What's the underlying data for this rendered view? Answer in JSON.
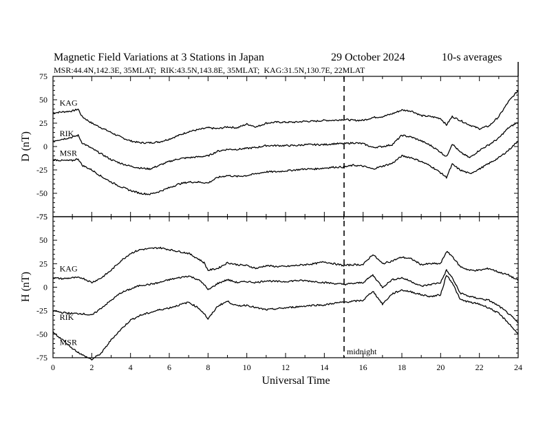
{
  "title": "Magnetic Field Variations at 3 Stations in Japan",
  "date": "29 October 2024",
  "averaging": "10-s averages",
  "stations_line": "MSR:44.4N,142.3E, 35MLAT;  RIK:43.5N,143.8E, 35MLAT;  KAG:31.5N,130.7E, 22MLAT",
  "chart_data": [
    {
      "type": "line",
      "panel": "top",
      "ylabel": "D (nT)",
      "xlim": [
        0,
        24
      ],
      "ylim": [
        -75,
        75
      ],
      "yticks": [
        75,
        50,
        25,
        0,
        -25,
        -50,
        -75
      ],
      "xticks": [
        0,
        2,
        4,
        6,
        8,
        10,
        12,
        14,
        16,
        18,
        20,
        22,
        24
      ],
      "grid": false,
      "series": [
        {
          "name": "KAG",
          "x": [
            0,
            0.5,
            1,
            1.3,
            1.5,
            2,
            2.5,
            3,
            3.5,
            4,
            4.5,
            5,
            5.5,
            6,
            6.5,
            7,
            7.5,
            8,
            8.5,
            9,
            9.5,
            10,
            10.5,
            11,
            11.5,
            12,
            12.5,
            13,
            13.5,
            14,
            14.5,
            15,
            15.5,
            16,
            16.5,
            17,
            17.5,
            18,
            18.5,
            19,
            19.5,
            20,
            20.3,
            20.6,
            21,
            21.5,
            22,
            22.5,
            23,
            23.5,
            24
          ],
          "y": [
            36,
            37,
            38,
            40,
            32,
            25,
            20,
            15,
            10,
            6,
            4,
            4,
            5,
            8,
            12,
            16,
            18,
            20,
            19,
            21,
            20,
            24,
            21,
            25,
            26,
            26,
            26,
            27,
            27,
            28,
            28,
            29,
            28,
            28,
            31,
            32,
            35,
            39,
            38,
            33,
            32,
            30,
            23,
            32,
            28,
            23,
            19,
            22,
            32,
            48,
            60
          ]
        },
        {
          "name": "RIK",
          "x": [
            0,
            0.5,
            1,
            1.3,
            1.5,
            2,
            2.5,
            3,
            3.5,
            4,
            4.5,
            5,
            5.5,
            6,
            6.5,
            7,
            7.5,
            8,
            8.5,
            9,
            9.5,
            10,
            10.5,
            11,
            11.5,
            12,
            12.5,
            13,
            13.5,
            14,
            14.5,
            15,
            15.5,
            16,
            16.5,
            17,
            17.5,
            18,
            18.5,
            19,
            19.5,
            20,
            20.3,
            20.6,
            21,
            21.5,
            22,
            22.5,
            23,
            23.5,
            24
          ],
          "y": [
            6,
            8,
            10,
            12,
            4,
            -2,
            -8,
            -14,
            -18,
            -21,
            -23,
            -24,
            -20,
            -16,
            -13,
            -12,
            -11,
            -10,
            -5,
            -3,
            -3,
            -2,
            -1,
            1,
            1,
            1,
            1,
            2,
            2,
            2,
            3,
            3,
            4,
            3,
            -1,
            0,
            2,
            12,
            10,
            6,
            1,
            -6,
            -11,
            3,
            -6,
            -12,
            -4,
            2,
            9,
            20,
            26
          ]
        },
        {
          "name": "MSR",
          "x": [
            0,
            0.5,
            1,
            1.3,
            1.5,
            2,
            2.5,
            3,
            3.5,
            4,
            4.5,
            5,
            5.5,
            6,
            6.5,
            7,
            7.5,
            8,
            8.5,
            9,
            9.5,
            10,
            10.5,
            11,
            11.5,
            12,
            12.5,
            13,
            13.5,
            14,
            14.5,
            15,
            15.5,
            16,
            16.5,
            17,
            17.5,
            18,
            18.5,
            19,
            19.5,
            20,
            20.3,
            20.6,
            21,
            21.5,
            22,
            22.5,
            23,
            23.5,
            24
          ],
          "y": [
            -14,
            -15,
            -15,
            -13,
            -20,
            -25,
            -32,
            -38,
            -43,
            -47,
            -50,
            -51,
            -48,
            -44,
            -40,
            -38,
            -38,
            -39,
            -33,
            -31,
            -32,
            -31,
            -29,
            -27,
            -27,
            -26,
            -25,
            -24,
            -24,
            -23,
            -22,
            -22,
            -20,
            -21,
            -24,
            -21,
            -18,
            -10,
            -12,
            -16,
            -21,
            -28,
            -33,
            -19,
            -25,
            -29,
            -24,
            -18,
            -12,
            -4,
            6
          ]
        }
      ]
    },
    {
      "type": "line",
      "panel": "bottom",
      "ylabel": "H (nT)",
      "xlabel": "Universal Time",
      "xlim": [
        0,
        24
      ],
      "ylim": [
        -75,
        75
      ],
      "yticks": [
        75,
        50,
        25,
        0,
        -25,
        -50,
        -75
      ],
      "xticks": [
        0,
        2,
        4,
        6,
        8,
        10,
        12,
        14,
        16,
        18,
        20,
        22,
        24
      ],
      "grid": false,
      "annotation": "midnight",
      "vline_x": 15,
      "series": [
        {
          "name": "KAG",
          "x": [
            0,
            0.5,
            1,
            1.5,
            2,
            2.5,
            3,
            3.5,
            4,
            4.5,
            5,
            5.5,
            6,
            6.5,
            7,
            7.5,
            7.8,
            8,
            8.5,
            9,
            9.5,
            10,
            10.5,
            11,
            11.5,
            12,
            12.5,
            13,
            13.5,
            14,
            14.5,
            15,
            15.5,
            16,
            16.5,
            17,
            17.5,
            18,
            18.5,
            19,
            19.5,
            20,
            20.3,
            20.6,
            21,
            21.5,
            22,
            22.5,
            23,
            23.5,
            24
          ],
          "y": [
            10,
            9,
            10,
            10,
            5,
            10,
            18,
            28,
            36,
            40,
            41,
            42,
            40,
            38,
            36,
            30,
            26,
            18,
            20,
            26,
            24,
            23,
            20,
            23,
            22,
            22,
            23,
            24,
            25,
            27,
            25,
            23,
            24,
            24,
            35,
            25,
            28,
            32,
            30,
            24,
            25,
            25,
            38,
            33,
            22,
            18,
            18,
            20,
            16,
            13,
            7
          ]
        },
        {
          "name": "RIK",
          "x": [
            0,
            0.5,
            1,
            1.5,
            2,
            2.5,
            3,
            3.5,
            4,
            4.5,
            5,
            5.5,
            6,
            6.5,
            7,
            7.5,
            7.8,
            8,
            8.5,
            9,
            9.5,
            10,
            10.5,
            11,
            11.5,
            12,
            12.5,
            13,
            13.5,
            14,
            14.5,
            15,
            15.5,
            16,
            16.5,
            17,
            17.5,
            18,
            18.5,
            19,
            19.5,
            20,
            20.3,
            20.6,
            21,
            21.5,
            22,
            22.5,
            23,
            23.5,
            24
          ],
          "y": [
            -25,
            -27,
            -28,
            -28,
            -30,
            -22,
            -14,
            -6,
            -2,
            2,
            3,
            5,
            8,
            10,
            12,
            8,
            3,
            -3,
            4,
            8,
            5,
            6,
            5,
            7,
            6,
            6,
            7,
            7,
            6,
            5,
            4,
            3,
            4,
            5,
            13,
            0,
            8,
            10,
            6,
            1,
            3,
            5,
            18,
            10,
            -6,
            -10,
            -12,
            -14,
            -20,
            -28,
            -38
          ]
        },
        {
          "name": "MSR",
          "x": [
            0,
            0.5,
            1,
            1.5,
            2,
            2.5,
            3,
            3.5,
            4,
            4.5,
            5,
            5.5,
            6,
            6.5,
            7,
            7.5,
            7.8,
            8,
            8.5,
            9,
            9.5,
            10,
            10.5,
            11,
            11.5,
            12,
            12.5,
            13,
            13.5,
            14,
            14.5,
            15,
            15.5,
            16,
            16.5,
            17,
            17.5,
            18,
            18.5,
            19,
            19.5,
            20,
            20.3,
            20.6,
            21,
            21.5,
            22,
            22.5,
            23,
            23.5,
            24
          ],
          "y": [
            -48,
            -56,
            -65,
            -72,
            -77,
            -70,
            -56,
            -45,
            -35,
            -30,
            -27,
            -24,
            -22,
            -19,
            -16,
            -22,
            -28,
            -34,
            -20,
            -15,
            -20,
            -19,
            -22,
            -24,
            -23,
            -22,
            -21,
            -20,
            -19,
            -19,
            -17,
            -16,
            -15,
            -14,
            -4,
            -18,
            -7,
            -3,
            -5,
            -8,
            -10,
            -8,
            13,
            5,
            -13,
            -16,
            -18,
            -22,
            -28,
            -38,
            -50
          ]
        }
      ]
    }
  ]
}
